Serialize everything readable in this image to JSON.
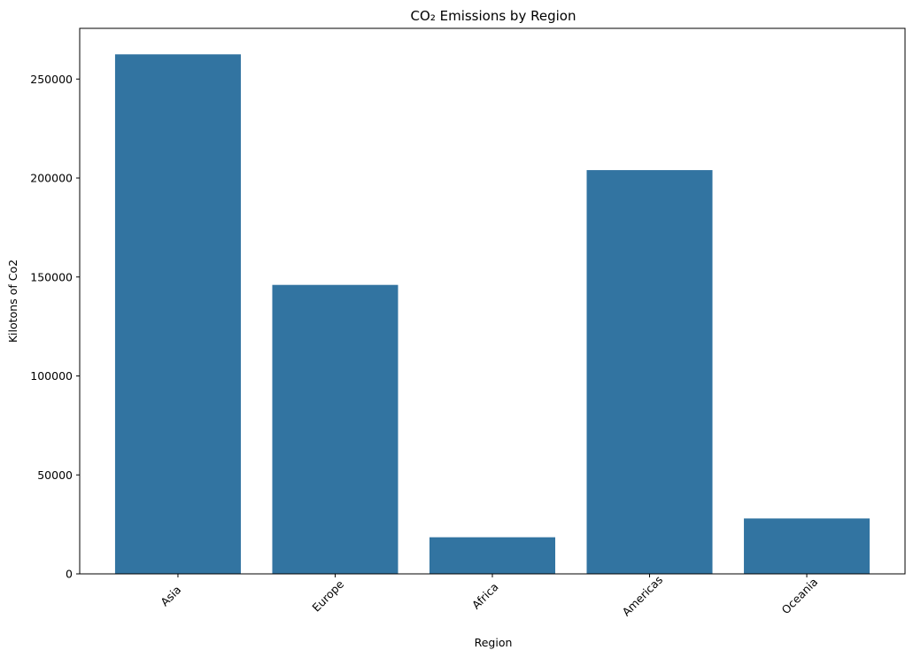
{
  "chart_data": {
    "type": "bar",
    "title": "CO₂ Emissions by Region",
    "xlabel": "Region",
    "ylabel": "Kilotons of Co2",
    "categories": [
      "Asia",
      "Europe",
      "Africa",
      "Americas",
      "Oceania"
    ],
    "values": [
      262500,
      146000,
      18500,
      204000,
      28000
    ],
    "ylim": [
      0,
      275625
    ],
    "yticks": [
      0,
      50000,
      100000,
      150000,
      200000,
      250000
    ],
    "ytick_labels": [
      "0",
      "50000",
      "100000",
      "150000",
      "200000",
      "250000"
    ],
    "xtick_rotation": -45,
    "grid": false,
    "legend": "none",
    "bar_color": "#3274a1"
  }
}
